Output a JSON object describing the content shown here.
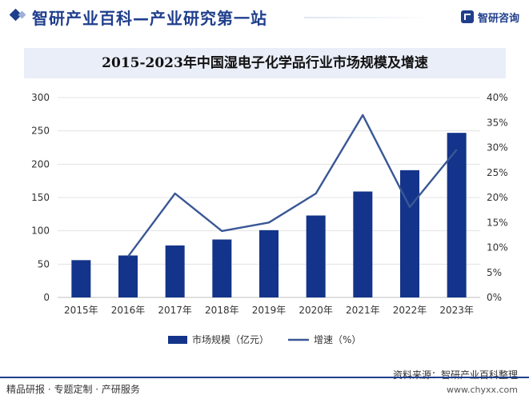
{
  "header": {
    "title": "智研产业百科—产业研究第一站",
    "brand": "智研咨询"
  },
  "footer": {
    "tagline": "精品研报 · 专题定制 · 产研服务",
    "source": "资料来源：智研产业百科整理",
    "url": "www.chyxx.com"
  },
  "colors": {
    "bar": "#13348a",
    "line": "#3a5795",
    "accent": "#1f3e8c"
  },
  "chart_data": {
    "type": "bar",
    "title": "2015-2023年中国湿电子化学品行业市场规模及增速",
    "categories": [
      "2015年",
      "2016年",
      "2017年",
      "2018年",
      "2019年",
      "2020年",
      "2021年",
      "2022年",
      "2023年"
    ],
    "series": [
      {
        "name": "市场规模（亿元）",
        "type": "bar",
        "axis": "left",
        "values": [
          56,
          63,
          78,
          87,
          101,
          123,
          159,
          191,
          247
        ]
      },
      {
        "name": "增速（%）",
        "type": "line",
        "axis": "right",
        "values": [
          null,
          8.2,
          20.8,
          13.3,
          15.0,
          20.8,
          36.5,
          18.1,
          29.6
        ]
      }
    ],
    "y_left": {
      "ylim": [
        0,
        300
      ],
      "ticks": [
        "0",
        "50",
        "100",
        "150",
        "200",
        "250",
        "300"
      ]
    },
    "y_right": {
      "ylim": [
        0,
        40
      ],
      "ticks": [
        "0%",
        "5%",
        "10%",
        "15%",
        "20%",
        "25%",
        "30%",
        "35%",
        "40%"
      ]
    },
    "grid": true,
    "legend": "bottom"
  }
}
